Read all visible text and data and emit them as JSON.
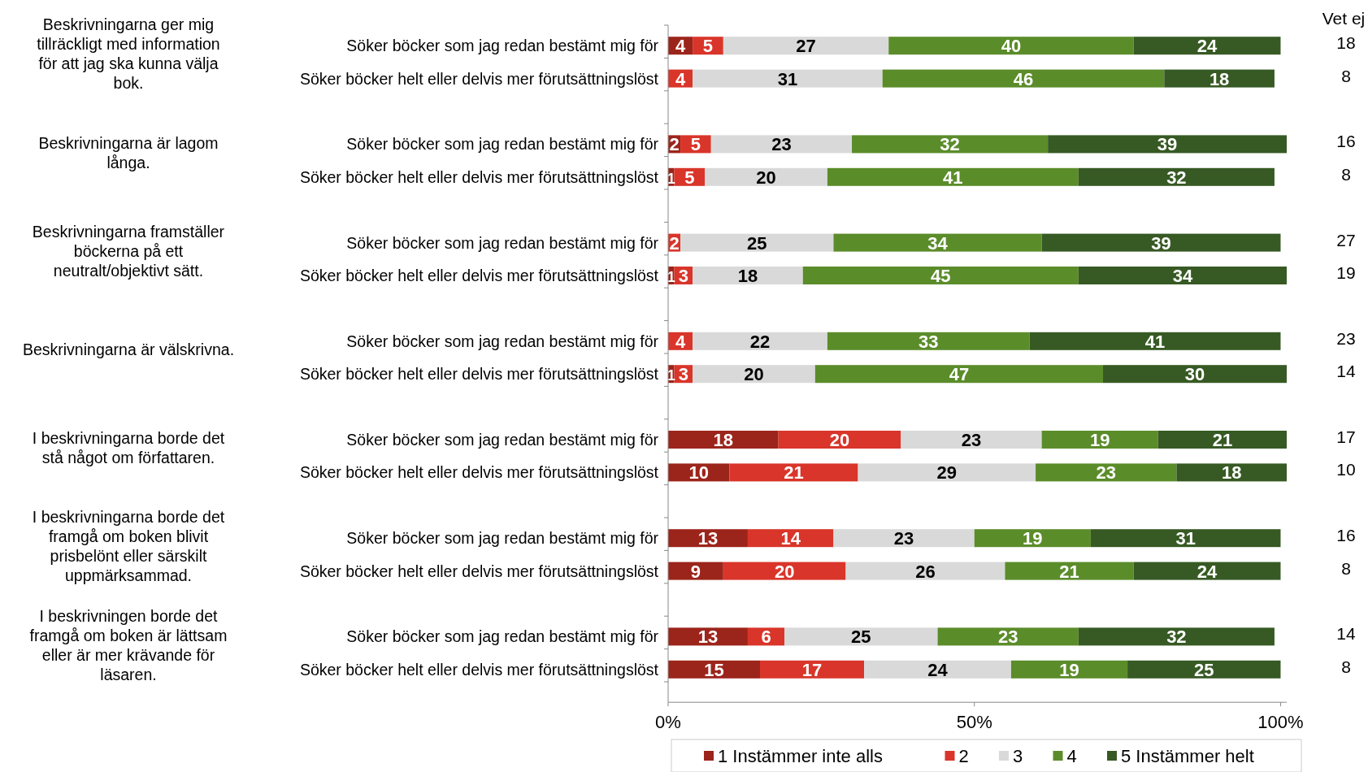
{
  "chart_data": {
    "type": "bar",
    "orientation": "horizontal",
    "stacked": true,
    "grid": false,
    "legend": "bottom",
    "categories": [
      "Söker böcker som jag redan bestämt mig för",
      "Söker böcker helt eller delvis mer förutsättningslöst",
      "Söker böcker som jag redan bestämt mig för",
      "Söker böcker helt eller delvis mer förutsättningslöst",
      "Söker böcker som jag redan bestämt mig för",
      "Söker böcker helt eller delvis mer förutsättningslöst",
      "Söker böcker som jag redan bestämt mig för",
      "Söker böcker helt eller delvis mer förutsättningslöst",
      "Söker böcker som jag redan bestämt mig för",
      "Söker böcker helt eller delvis mer förutsättningslöst",
      "Söker böcker som jag redan bestämt mig för",
      "Söker böcker helt eller delvis mer förutsättningslöst",
      "Söker böcker som jag redan bestämt mig för",
      "Söker böcker helt eller delvis mer förutsättningslöst"
    ],
    "series": [
      {
        "name": "1 Instämmer inte alls",
        "color": "#9c251b",
        "values": [
          4,
          0,
          2,
          1,
          0,
          1,
          0,
          1,
          18,
          10,
          13,
          9,
          13,
          15
        ],
        "value_labels": [
          "4",
          null,
          "2",
          "1",
          null,
          "1",
          null,
          "1",
          "18",
          "10",
          "13",
          "9",
          "13",
          "15"
        ]
      },
      {
        "name": "2",
        "color": "#d9352a",
        "values": [
          5,
          4,
          5,
          5,
          2,
          3,
          4,
          3,
          20,
          21,
          14,
          20,
          6,
          17
        ],
        "value_labels": [
          "5",
          "4",
          "5",
          "5",
          "2",
          "3",
          "4",
          "3",
          "20",
          "21",
          "14",
          "20",
          "6",
          "17"
        ]
      },
      {
        "name": "3",
        "color": "#d9d9d9",
        "values": [
          27,
          31,
          23,
          20,
          25,
          18,
          22,
          20,
          23,
          29,
          23,
          26,
          25,
          24
        ],
        "value_labels": [
          "27",
          "31",
          "23",
          "20",
          "25",
          "18",
          "22",
          "20",
          "23",
          "29",
          "23",
          "26",
          "25",
          "24"
        ]
      },
      {
        "name": "4",
        "color": "#5b8c2a",
        "values": [
          40,
          46,
          32,
          41,
          34,
          45,
          33,
          47,
          19,
          23,
          19,
          21,
          23,
          19
        ],
        "value_labels": [
          "40",
          "46",
          "32",
          "41",
          "34",
          "45",
          "33",
          "47",
          "19",
          "23",
          "19",
          "21",
          "23",
          "19"
        ]
      },
      {
        "name": "5 Instämmer helt",
        "color": "#375a24",
        "values": [
          24,
          18,
          39,
          32,
          39,
          34,
          41,
          30,
          21,
          18,
          31,
          24,
          32,
          25
        ],
        "value_labels": [
          "24",
          "18",
          "39",
          "32",
          "39",
          "34",
          "41",
          "30",
          "21",
          "18",
          "31",
          "24",
          "32",
          "25"
        ]
      }
    ],
    "xlim": [
      0,
      101
    ],
    "xticks": [
      {
        "value": 0,
        "label": "0%"
      },
      {
        "value": 50,
        "label": "50%"
      },
      {
        "value": 100,
        "label": "100%"
      }
    ],
    "annotations": [
      "Beskrivningarna ger mig tillräckligt med information för att jag ska kunna välja bok.",
      "Beskrivningarna är lagom långa.",
      "Beskrivningarna framställer böckerna på ett neutralt/objektivt sätt.",
      "Beskrivningarna är välskrivna.",
      "I beskrivningarna borde det stå något om författaren.",
      "I beskrivningarna borde det framgå om boken blivit prisbelönt eller särskilt uppmärksammad.",
      "I beskrivningen borde det framgå om boken är lättsam eller är mer krävande för läsaren.",
      "Vet ej",
      "18",
      "8",
      "16",
      "8",
      "27",
      "19",
      "23",
      "14",
      "17",
      "10",
      "16",
      "8",
      "14",
      "8"
    ]
  }
}
